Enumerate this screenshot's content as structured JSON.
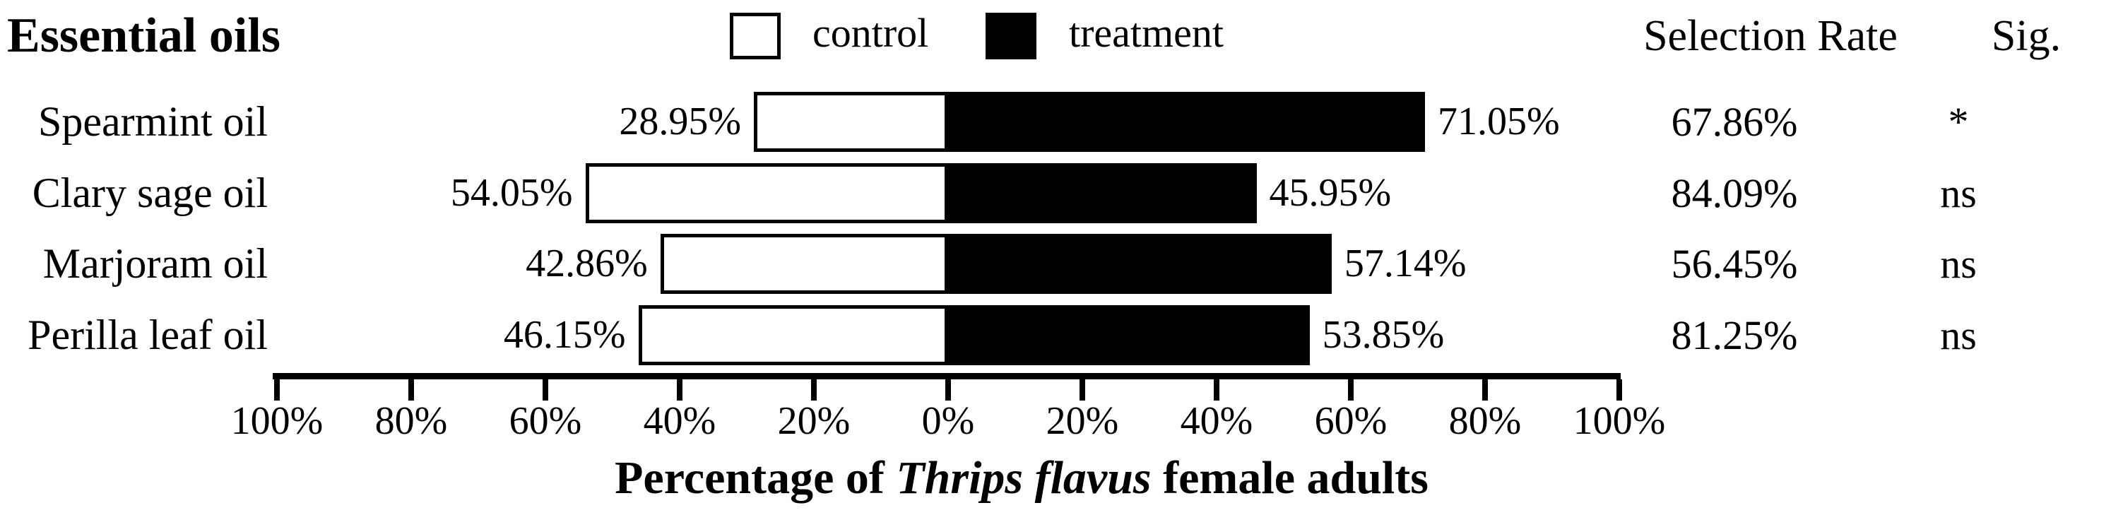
{
  "title": "Essential oils",
  "legend": {
    "control_label": "control",
    "treatment_label": "treatment"
  },
  "columns": {
    "selection_rate_header": "Selection Rate",
    "sig_header": "Sig."
  },
  "axis_title": {
    "prefix": "Percentage of ",
    "species_italic": "Thrips flavus",
    "suffix": " female adults"
  },
  "colors": {
    "ink": "#000000",
    "paper": "#ffffff",
    "control_fill": "#ffffff",
    "treatment_fill": "#000000"
  },
  "chart_data": {
    "type": "bar",
    "orientation": "horizontal-diverging",
    "title": "Essential oils",
    "xlabel": "Percentage of Thrips flavus female adults",
    "xlim": [
      -100,
      100
    ],
    "grid": false,
    "legend_position": "top-center",
    "legend_entries": [
      "control",
      "treatment"
    ],
    "categories": [
      "Spearmint oil",
      "Clary sage oil",
      "Marjoram oil",
      "Perilla leaf oil"
    ],
    "series": [
      {
        "name": "control",
        "values": [
          28.95,
          54.05,
          42.86,
          46.15
        ]
      },
      {
        "name": "treatment",
        "values": [
          71.05,
          45.95,
          57.14,
          53.85
        ]
      }
    ],
    "bar_labels": {
      "control": [
        "28.95%",
        "54.05%",
        "42.86%",
        "46.15%"
      ],
      "treatment": [
        "71.05%",
        "45.95%",
        "57.14%",
        "53.85%"
      ]
    },
    "selection_rate": [
      "67.86%",
      "84.09%",
      "56.45%",
      "81.25%"
    ],
    "significance": [
      "*",
      "ns",
      "ns",
      "ns"
    ],
    "x_tick_labels": [
      "100%",
      "80%",
      "60%",
      "40%",
      "20%",
      "0%",
      "20%",
      "40%",
      "60%",
      "80%",
      "100%"
    ],
    "x_tick_values": [
      -100,
      -80,
      -60,
      -40,
      -20,
      0,
      20,
      40,
      60,
      80,
      100
    ]
  }
}
